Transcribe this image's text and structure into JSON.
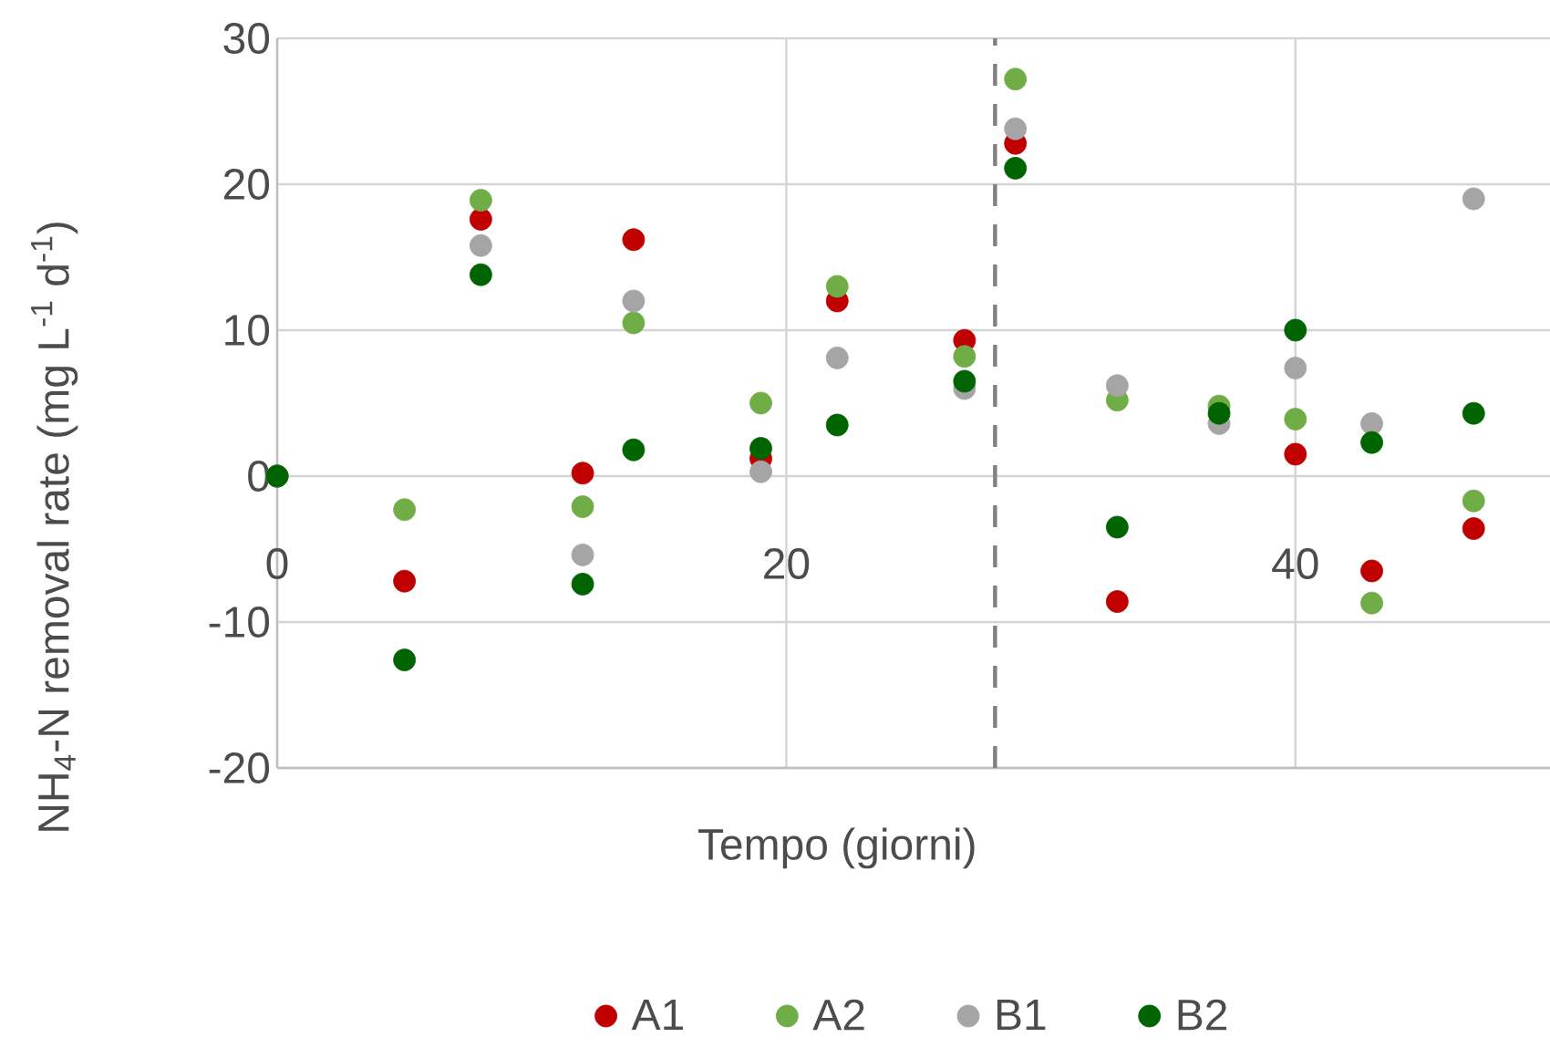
{
  "chart_data": {
    "type": "scatter",
    "xlabel": "Tempo (giorni)",
    "ylabel": "NH$_{4}$-N removal rate (mg L$^{-1}$ d$^{-1}$)",
    "x": [
      0,
      5,
      8,
      12,
      14,
      19,
      22,
      27,
      29,
      33,
      37,
      40,
      43,
      47
    ],
    "series": [
      {
        "name": "A1",
        "color": "#c00000",
        "values": [
          0,
          -7.2,
          17.6,
          0.2,
          16.2,
          1.2,
          12.0,
          9.3,
          22.8,
          -8.6,
          null,
          1.5,
          -6.5,
          -3.6
        ]
      },
      {
        "name": "A2",
        "color": "#70ad47",
        "values": [
          0,
          -2.3,
          18.9,
          -2.1,
          10.5,
          5.0,
          13.0,
          8.2,
          27.2,
          5.2,
          4.8,
          3.9,
          -8.7,
          -1.7
        ]
      },
      {
        "name": "B1",
        "color": "#a5a5a5",
        "values": [
          0,
          null,
          15.8,
          -5.4,
          12.0,
          0.3,
          8.1,
          6.0,
          23.8,
          6.2,
          3.6,
          7.4,
          3.6,
          19.0
        ]
      },
      {
        "name": "B2",
        "color": "#006400",
        "values": [
          0,
          -12.6,
          13.8,
          -7.4,
          1.8,
          1.9,
          3.5,
          6.5,
          21.1,
          -3.5,
          4.3,
          10.0,
          2.3,
          4.3
        ]
      }
    ],
    "xlim": [
      0,
      50
    ],
    "xticks": [
      0,
      20,
      40
    ],
    "ylim": [
      -20,
      30
    ],
    "yticks": [
      -20,
      -10,
      0,
      10,
      20,
      30
    ],
    "ref_lines": [
      {
        "axis": "x",
        "value": 28.2,
        "color": "#808080",
        "line_style": "dashed"
      }
    ],
    "grid": true,
    "legend": "bottom",
    "marker": "circle"
  }
}
